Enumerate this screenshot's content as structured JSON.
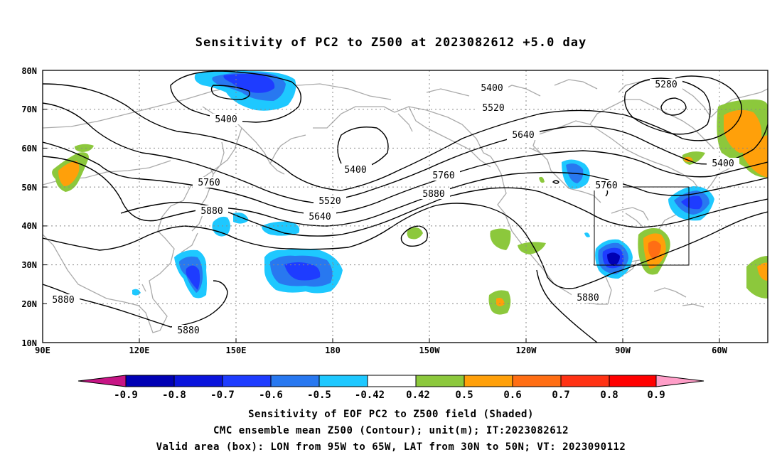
{
  "title": "Sensitivity of PC2 to Z500 at 2023082612 +5.0 day",
  "map": {
    "lon_range": [
      "90E",
      "50W"
    ],
    "lat_range": [
      "10N",
      "80N"
    ],
    "lat_ticks": [
      "80N",
      "70N",
      "60N",
      "50N",
      "40N",
      "30N",
      "20N",
      "10N"
    ],
    "lon_ticks": [
      "90E",
      "120E",
      "150E",
      "180",
      "150W",
      "120W",
      "90W",
      "60W"
    ],
    "grid": "dotted",
    "coastline_color": "#aaaaaa",
    "valid_box": {
      "lon": [
        "95W",
        "65W"
      ],
      "lat": [
        "30N",
        "50N"
      ]
    },
    "contour_labels": [
      "5280",
      "5400",
      "5400",
      "5400",
      "5400",
      "5520",
      "5520",
      "5640",
      "5640",
      "5760",
      "5760",
      "5760",
      "5880",
      "5880",
      "5880",
      "5880",
      "5880"
    ]
  },
  "colorbar": {
    "labels": [
      "-0.9",
      "-0.8",
      "-0.7",
      "-0.6",
      "-0.5",
      "-0.42",
      "0.42",
      "0.5",
      "0.6",
      "0.7",
      "0.8",
      "0.9"
    ],
    "colors": [
      "#c71585",
      "#0000b4",
      "#0a14dc",
      "#1e3cff",
      "#2878f0",
      "#1ec8ff",
      "#ffffff",
      "#8cc83c",
      "#ffa00a",
      "#ff6e14",
      "#ff3214",
      "#ff0000",
      "#ff9ec8"
    ]
  },
  "captions": [
    "Sensitivity of EOF PC2 to Z500 field (Shaded)",
    "CMC ensemble mean Z500 (Contour); unit(m); IT:2023082612",
    "Valid area (box): LON from 95W to 65W, LAT from 30N to 50N; VT: 2023090112"
  ]
}
